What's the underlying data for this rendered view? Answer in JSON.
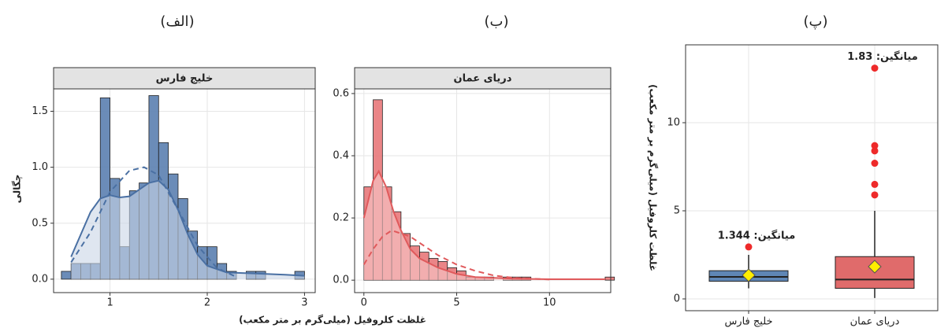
{
  "chart_data": [
    {
      "type": "histogram",
      "title": "(الف)",
      "strip": "خلیج فارس",
      "ylabel": "چگالی",
      "xlabel": "غلظت کلروفیل (میلی‌گرم بر متر مکعب)",
      "bins": [
        0.5,
        0.6,
        0.7,
        0.8,
        0.9,
        1.0,
        1.1,
        1.2,
        1.3,
        1.4,
        1.5,
        1.6,
        1.7,
        1.8,
        1.9,
        2.0,
        2.1,
        2.2,
        2.3,
        2.4,
        2.5,
        2.6,
        2.7,
        2.8,
        2.9,
        3.0
      ],
      "values": [
        0.07,
        0.14,
        0.14,
        0.14,
        1.62,
        0.9,
        0.29,
        0.79,
        0.86,
        1.64,
        1.22,
        0.94,
        0.72,
        0.43,
        0.29,
        0.29,
        0.14,
        0.07,
        0,
        0.07,
        0.07,
        0,
        0,
        0,
        0.07
      ],
      "color": "#5b80b0",
      "curve_color": "#4a70a3",
      "area_color": "#c9d6e6",
      "curves": [
        {
          "x": [
            0.6,
            0.8,
            0.9,
            1.0,
            1.1,
            1.2,
            1.3,
            1.4,
            1.5,
            1.6,
            1.7,
            1.8,
            1.9,
            2.0,
            2.2,
            2.5,
            2.8,
            3.0
          ],
          "y": [
            0.2,
            0.6,
            0.72,
            0.75,
            0.73,
            0.74,
            0.8,
            0.86,
            0.88,
            0.8,
            0.62,
            0.4,
            0.22,
            0.12,
            0.06,
            0.05,
            0.04,
            0.03
          ],
          "dash": false,
          "area": true
        },
        {
          "x": [
            0.6,
            0.8,
            1.0,
            1.2,
            1.35,
            1.5,
            1.7,
            1.9,
            2.1,
            2.3
          ],
          "y": [
            0.15,
            0.42,
            0.78,
            0.97,
            1.0,
            0.93,
            0.62,
            0.3,
            0.1,
            0.02
          ],
          "dash": true,
          "area": false
        }
      ],
      "xlim": [
        0.42,
        3.11
      ],
      "ylim": [
        -0.12,
        1.7
      ],
      "xticks": [
        1,
        2,
        3
      ],
      "yticks": [
        {
          "value": 0,
          "label": "0.0"
        },
        0.5,
        {
          "value": 1,
          "label": "1.0"
        },
        1.5
      ],
      "grid": true
    },
    {
      "type": "histogram",
      "title": "(ب)",
      "strip": "دریای عمان",
      "bins": [
        0,
        0.5,
        1,
        1.5,
        2,
        2.5,
        3,
        3.5,
        4,
        4.5,
        5,
        5.5,
        6,
        6.5,
        7,
        7.5,
        8,
        8.5,
        9,
        9.5,
        10,
        10.5,
        11,
        11.5,
        12,
        12.5,
        13,
        13.5
      ],
      "values": [
        0.3,
        0.58,
        0.3,
        0.22,
        0.15,
        0.11,
        0.09,
        0.07,
        0.06,
        0.04,
        0.03,
        0.01,
        0.01,
        0.01,
        0,
        0.01,
        0.01,
        0.01,
        0,
        0,
        0,
        0,
        0,
        0,
        0,
        0,
        0.01
      ],
      "color": "#e8787a",
      "curve_color": "#e05a5c",
      "area_color": "#f6caca",
      "curves": [
        {
          "x": [
            0,
            0.5,
            0.8,
            1.2,
            1.6,
            2,
            2.5,
            3,
            4,
            5,
            6,
            8,
            10,
            13
          ],
          "y": [
            0.2,
            0.32,
            0.35,
            0.3,
            0.22,
            0.16,
            0.1,
            0.07,
            0.04,
            0.02,
            0.01,
            0.005,
            0.003,
            0.003
          ],
          "dash": false,
          "area": true
        },
        {
          "x": [
            0,
            0.5,
            1,
            1.5,
            2,
            2.5,
            3,
            4,
            5,
            6,
            7,
            8,
            10
          ],
          "y": [
            0.05,
            0.1,
            0.14,
            0.16,
            0.15,
            0.14,
            0.12,
            0.08,
            0.05,
            0.03,
            0.015,
            0.008,
            0.002
          ],
          "dash": true,
          "area": false
        }
      ],
      "xlim": [
        -0.5,
        13.3
      ],
      "ylim": [
        -0.04,
        0.615
      ],
      "xticks": [
        0,
        5,
        10
      ],
      "yticks": [
        {
          "value": 0,
          "label": "0.0"
        },
        0.2,
        0.4,
        0.6
      ],
      "grid": true
    },
    {
      "type": "box",
      "title": "(پ)",
      "ylabel": "غلظت کلروفیل (میلی‌گرم بر متر مکعب)",
      "categories": [
        "خلیج فارس",
        "دریای عمان"
      ],
      "colors": [
        "#5f86b5",
        "#e06b6b"
      ],
      "min": [
        0.6,
        0.05
      ],
      "q1": [
        1.0,
        0.6
      ],
      "median": [
        1.25,
        1.1
      ],
      "q3": [
        1.6,
        2.4
      ],
      "max": [
        2.5,
        5.0
      ],
      "mean": [
        1.344,
        1.83
      ],
      "mean_labels": [
        "میانگین: 1.344",
        "میانگین: 1.83"
      ],
      "outliers": [
        [
          2.95
        ],
        [
          5.9,
          6.5,
          7.7,
          8.4,
          8.7,
          13.1
        ]
      ],
      "ylim": [
        -0.67,
        14.42
      ],
      "yticks": [
        0,
        5,
        10
      ],
      "grid": true
    }
  ]
}
